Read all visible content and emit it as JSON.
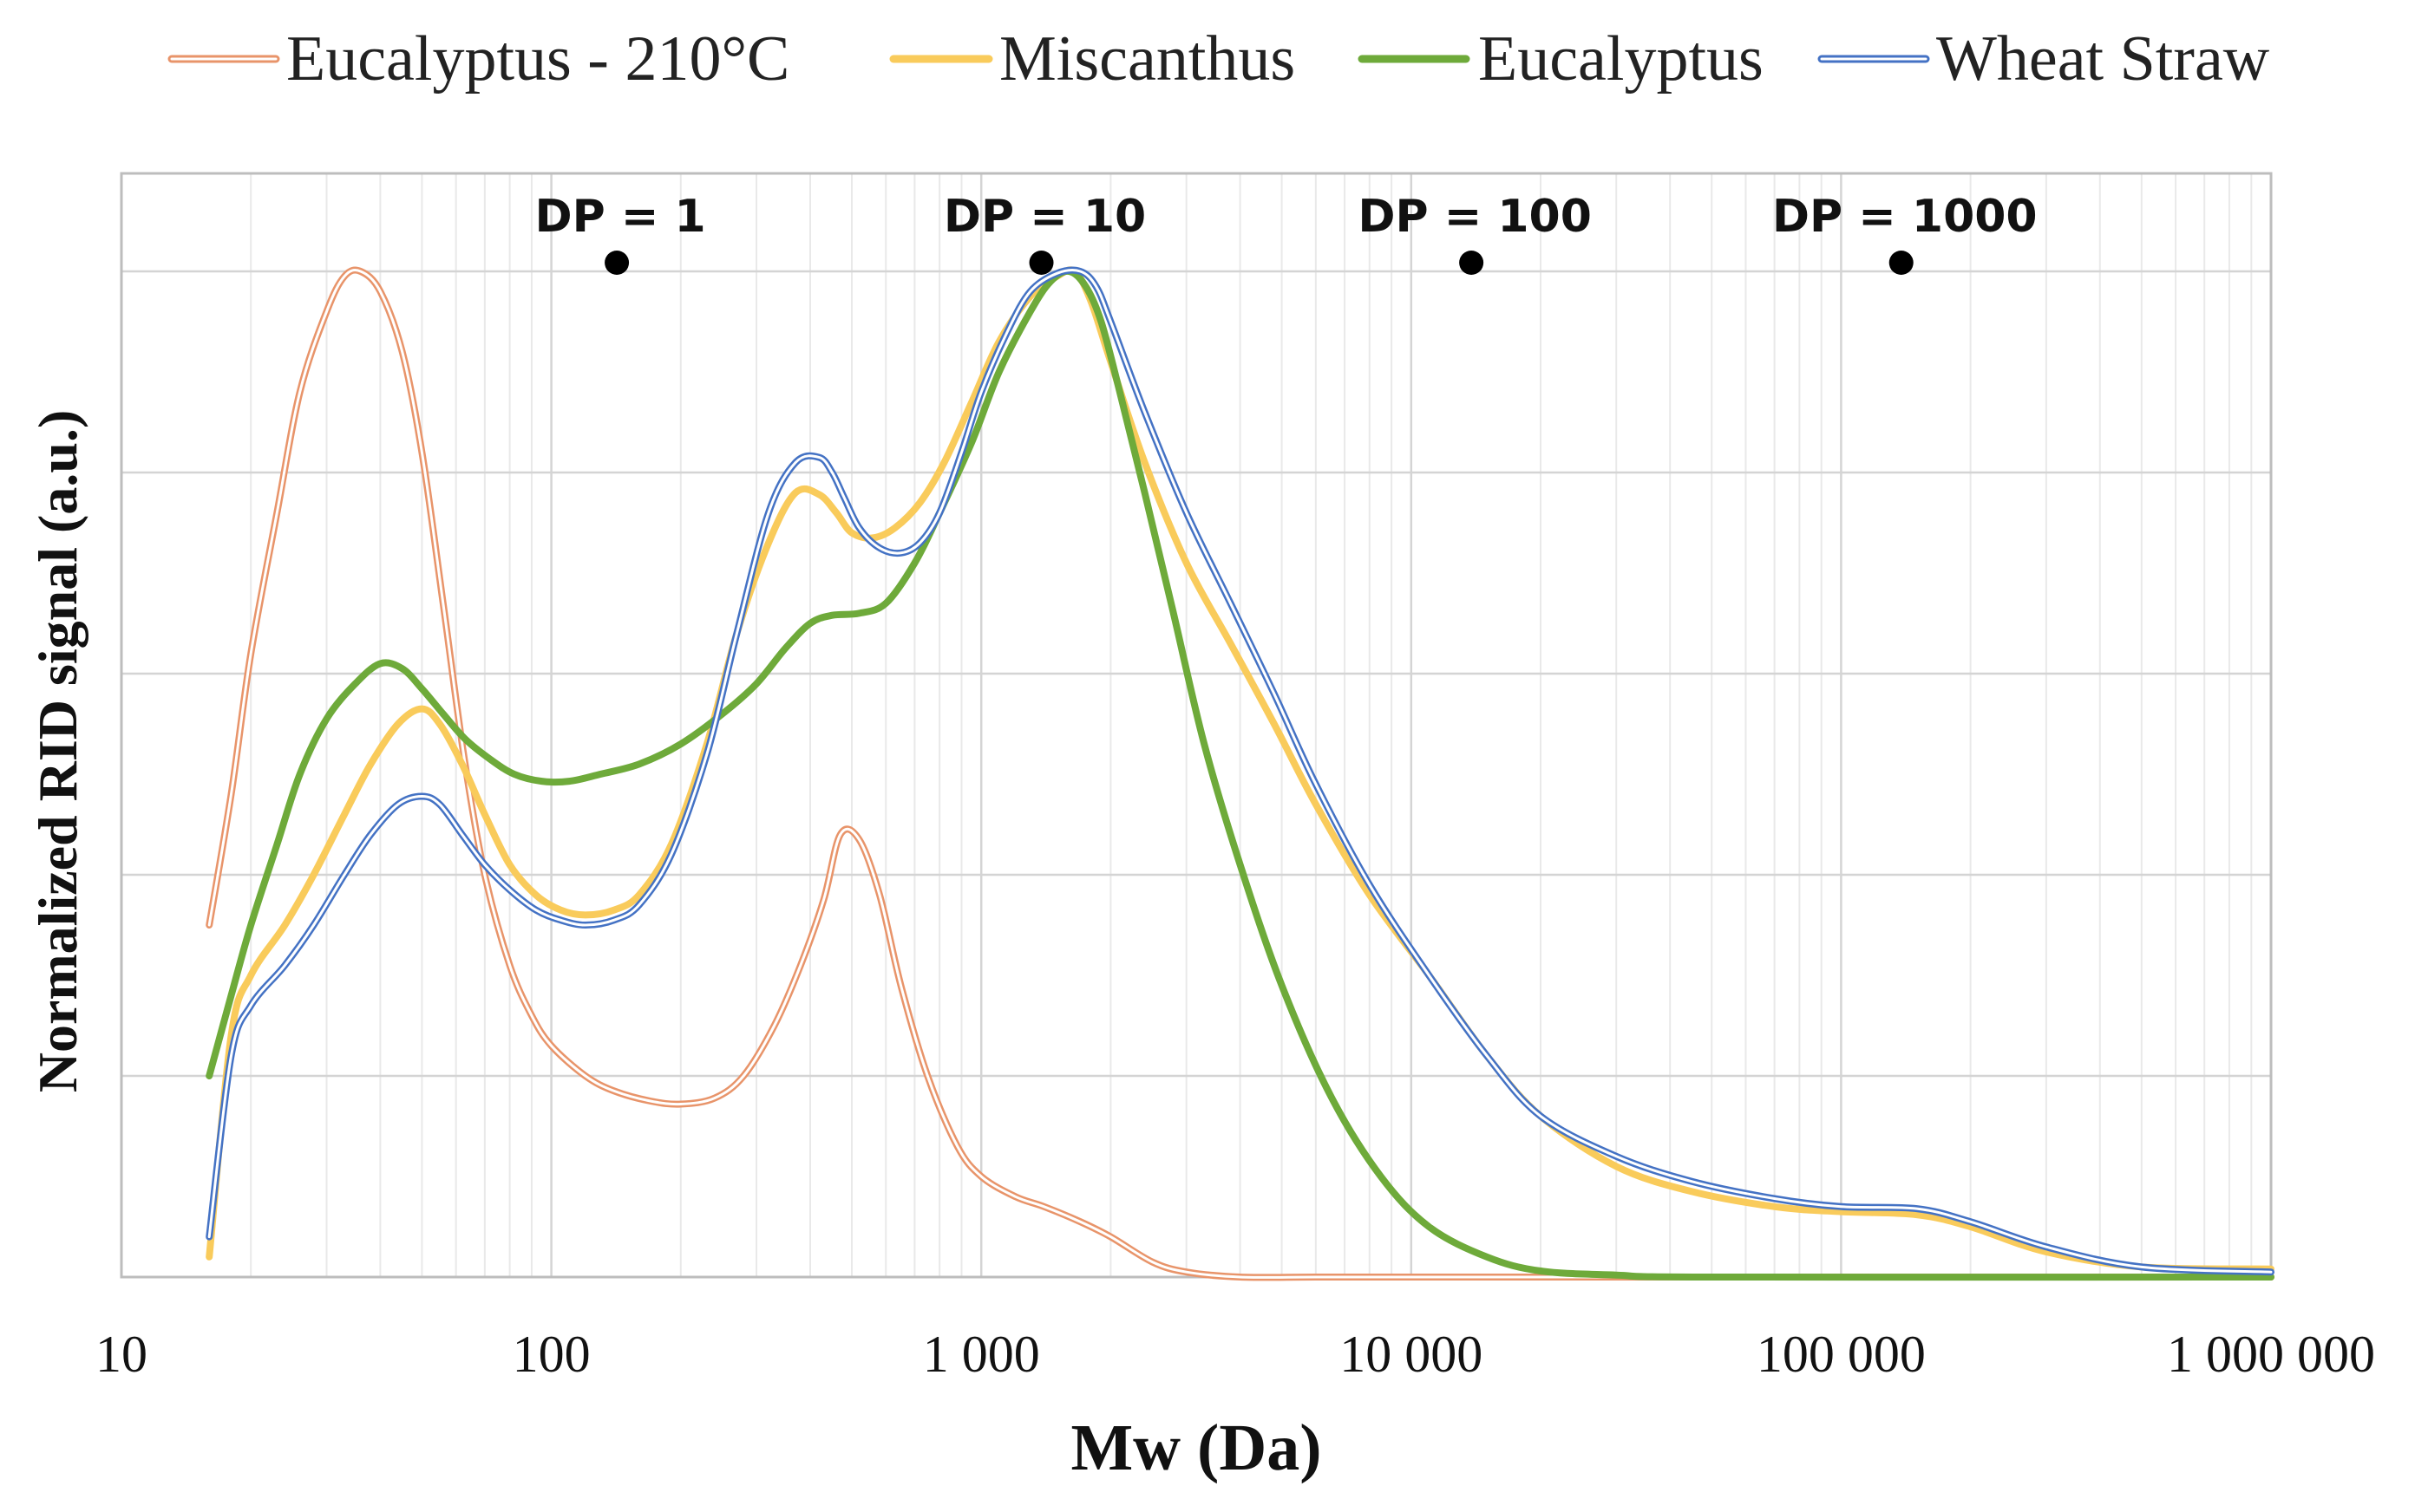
{
  "chart_data": {
    "type": "line",
    "title": "",
    "xlabel": "Mw (Da)",
    "ylabel": "Normalized RID signal (a.u.)",
    "xscale": "log",
    "xlim": [
      10,
      1000000
    ],
    "ylim": [
      0,
      1
    ],
    "grid": true,
    "legend_position": "top",
    "x_tick_labels": [
      "10",
      "100",
      "1 000",
      "10 000",
      "100 000",
      "1 000 000"
    ],
    "x_tick_values": [
      10,
      100,
      1000,
      10000,
      100000,
      1000000
    ],
    "y_gridlines": [
      0.2,
      0.4,
      0.6,
      0.8,
      1.0
    ],
    "annotations": [
      {
        "label": "DP = 1",
        "x": 142,
        "y": 1.0
      },
      {
        "label": "DP = 10",
        "x": 1380,
        "y": 1.0
      },
      {
        "label": "DP = 100",
        "x": 13800,
        "y": 1.0
      },
      {
        "label": "DP = 1000",
        "x": 138000,
        "y": 1.0
      }
    ],
    "series": [
      {
        "name": "Eucalyptus - 210°C",
        "color": "#E8946A",
        "style": "double",
        "x": [
          16,
          18,
          20,
          23,
          26,
          30,
          33,
          36,
          40,
          45,
          50,
          56,
          63,
          70,
          80,
          90,
          100,
          120,
          140,
          170,
          200,
          240,
          280,
          330,
          380,
          430,
          470,
          520,
          580,
          650,
          750,
          880,
          1000,
          1200,
          1400,
          1700,
          2000,
          2500,
          3000,
          4000,
          6000,
          10000,
          20000,
          50000,
          100000,
          300000,
          1000000
        ],
        "y": [
          0.35,
          0.48,
          0.62,
          0.76,
          0.88,
          0.96,
          0.995,
          1.0,
          0.98,
          0.92,
          0.82,
          0.67,
          0.51,
          0.4,
          0.31,
          0.26,
          0.23,
          0.2,
          0.185,
          0.175,
          0.172,
          0.178,
          0.2,
          0.25,
          0.31,
          0.375,
          0.44,
          0.435,
          0.38,
          0.29,
          0.2,
          0.13,
          0.1,
          0.08,
          0.07,
          0.055,
          0.04,
          0.015,
          0.005,
          0.0,
          0.0,
          0.0,
          0.0,
          0.0,
          0.0,
          0.0,
          0.0
        ]
      },
      {
        "name": "Miscanthus",
        "color": "#F9CB5B",
        "style": "solid",
        "x": [
          16,
          18,
          20,
          24,
          28,
          33,
          38,
          44,
          50,
          55,
          62,
          70,
          80,
          92,
          105,
          120,
          140,
          160,
          190,
          230,
          270,
          320,
          370,
          420,
          460,
          500,
          560,
          630,
          720,
          820,
          950,
          1100,
          1300,
          1500,
          1650,
          1800,
          2000,
          2400,
          3000,
          3800,
          4800,
          6000,
          8000,
          11000,
          15000,
          20000,
          30000,
          45000,
          70000,
          100000,
          150000,
          200000,
          300000,
          500000,
          1000000
        ],
        "y": [
          0.02,
          0.24,
          0.3,
          0.35,
          0.4,
          0.46,
          0.51,
          0.55,
          0.565,
          0.55,
          0.51,
          0.46,
          0.41,
          0.38,
          0.365,
          0.36,
          0.365,
          0.38,
          0.43,
          0.53,
          0.64,
          0.73,
          0.78,
          0.778,
          0.76,
          0.74,
          0.735,
          0.745,
          0.77,
          0.81,
          0.87,
          0.93,
          0.975,
          0.995,
          1.0,
          0.97,
          0.91,
          0.81,
          0.71,
          0.63,
          0.55,
          0.47,
          0.38,
          0.3,
          0.22,
          0.16,
          0.11,
          0.085,
          0.07,
          0.065,
          0.062,
          0.05,
          0.025,
          0.01,
          0.008
        ]
      },
      {
        "name": "Eucalyptus",
        "color": "#6EAA3A",
        "style": "solid",
        "x": [
          16,
          18,
          20,
          23,
          26,
          30,
          35,
          40,
          45,
          50,
          56,
          63,
          72,
          82,
          95,
          110,
          130,
          160,
          200,
          250,
          300,
          350,
          400,
          450,
          520,
          600,
          700,
          800,
          950,
          1100,
          1300,
          1450,
          1600,
          1750,
          1900,
          2100,
          2400,
          2800,
          3300,
          4000,
          5000,
          6500,
          8500,
          11000,
          15000,
          20000,
          30000,
          50000,
          1000000
        ],
        "y": [
          0.2,
          0.28,
          0.35,
          0.43,
          0.5,
          0.555,
          0.59,
          0.61,
          0.605,
          0.585,
          0.56,
          0.535,
          0.515,
          0.5,
          0.493,
          0.493,
          0.5,
          0.51,
          0.53,
          0.56,
          0.59,
          0.625,
          0.65,
          0.658,
          0.66,
          0.67,
          0.71,
          0.76,
          0.83,
          0.9,
          0.96,
          0.99,
          1.0,
          0.985,
          0.95,
          0.88,
          0.78,
          0.66,
          0.53,
          0.41,
          0.29,
          0.18,
          0.1,
          0.05,
          0.02,
          0.006,
          0.002,
          0.0,
          0.0
        ]
      },
      {
        "name": "Wheat Straw",
        "color": "#4472C4",
        "style": "double",
        "x": [
          16,
          18,
          20,
          24,
          28,
          33,
          38,
          44,
          50,
          55,
          62,
          70,
          80,
          92,
          105,
          120,
          140,
          160,
          190,
          230,
          270,
          320,
          370,
          420,
          450,
          480,
          520,
          580,
          650,
          720,
          800,
          900,
          1000,
          1150,
          1300,
          1500,
          1700,
          1850,
          2000,
          2400,
          3000,
          3800,
          4800,
          6000,
          8000,
          11000,
          15000,
          20000,
          30000,
          45000,
          70000,
          100000,
          150000,
          200000,
          300000,
          500000,
          1000000
        ],
        "y": [
          0.04,
          0.22,
          0.27,
          0.31,
          0.35,
          0.4,
          0.44,
          0.47,
          0.478,
          0.47,
          0.44,
          0.41,
          0.385,
          0.365,
          0.355,
          0.35,
          0.355,
          0.37,
          0.42,
          0.52,
          0.64,
          0.76,
          0.81,
          0.815,
          0.8,
          0.775,
          0.745,
          0.725,
          0.72,
          0.73,
          0.76,
          0.82,
          0.88,
          0.94,
          0.98,
          0.998,
          1.0,
          0.985,
          0.95,
          0.86,
          0.76,
          0.67,
          0.58,
          0.49,
          0.39,
          0.3,
          0.22,
          0.16,
          0.12,
          0.095,
          0.078,
          0.07,
          0.068,
          0.055,
          0.03,
          0.01,
          0.005
        ]
      }
    ]
  }
}
